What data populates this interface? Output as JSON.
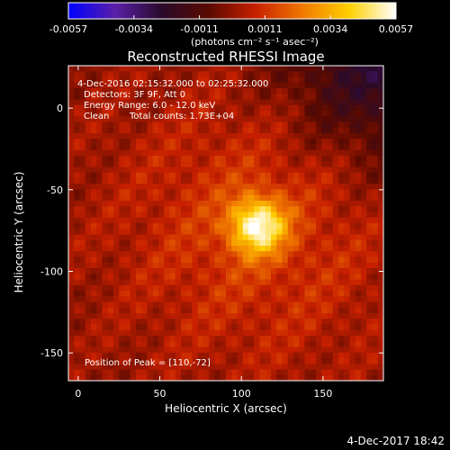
{
  "colorbar": {
    "ticks": [
      "-0.0057",
      "-0.0034",
      "-0.0011",
      "0.0011",
      "0.0034",
      "0.0057"
    ],
    "units": "(photons cm⁻² s⁻¹ asec⁻²)",
    "colors": [
      "#0000ff",
      "#5a1fa8",
      "#2a0a2a",
      "#5a0a00",
      "#c82000",
      "#f07800",
      "#ffd000",
      "#ffffff"
    ]
  },
  "chart_data": {
    "type": "heatmap",
    "title": "Reconstructed RHESSI Image",
    "xlabel": "Heliocentric X (arcsec)",
    "ylabel": "Heliocentric Y (arcsec)",
    "xlim": [
      -6,
      187
    ],
    "ylim": [
      -167,
      26
    ],
    "x_ticks": [
      0,
      50,
      100,
      150
    ],
    "y_ticks": [
      0,
      -50,
      -100,
      -150
    ],
    "value_range": [
      -0.0057,
      0.0057
    ],
    "peak": [
      110,
      -72
    ],
    "annotations": {
      "time_range": "4-Dec-2016 02:15:32.000 to 02:25:32.000",
      "detectors": "Detectors: 3F 9F, Att 0",
      "energy": "Energy Range: 6.0 - 12.0 keV",
      "method": "Clean",
      "counts": "Total counts: 1.73E+04",
      "peak_label": "Position of Peak = [110,-72]"
    }
  },
  "footer": {
    "date": "4-Dec-2017 18:42"
  }
}
